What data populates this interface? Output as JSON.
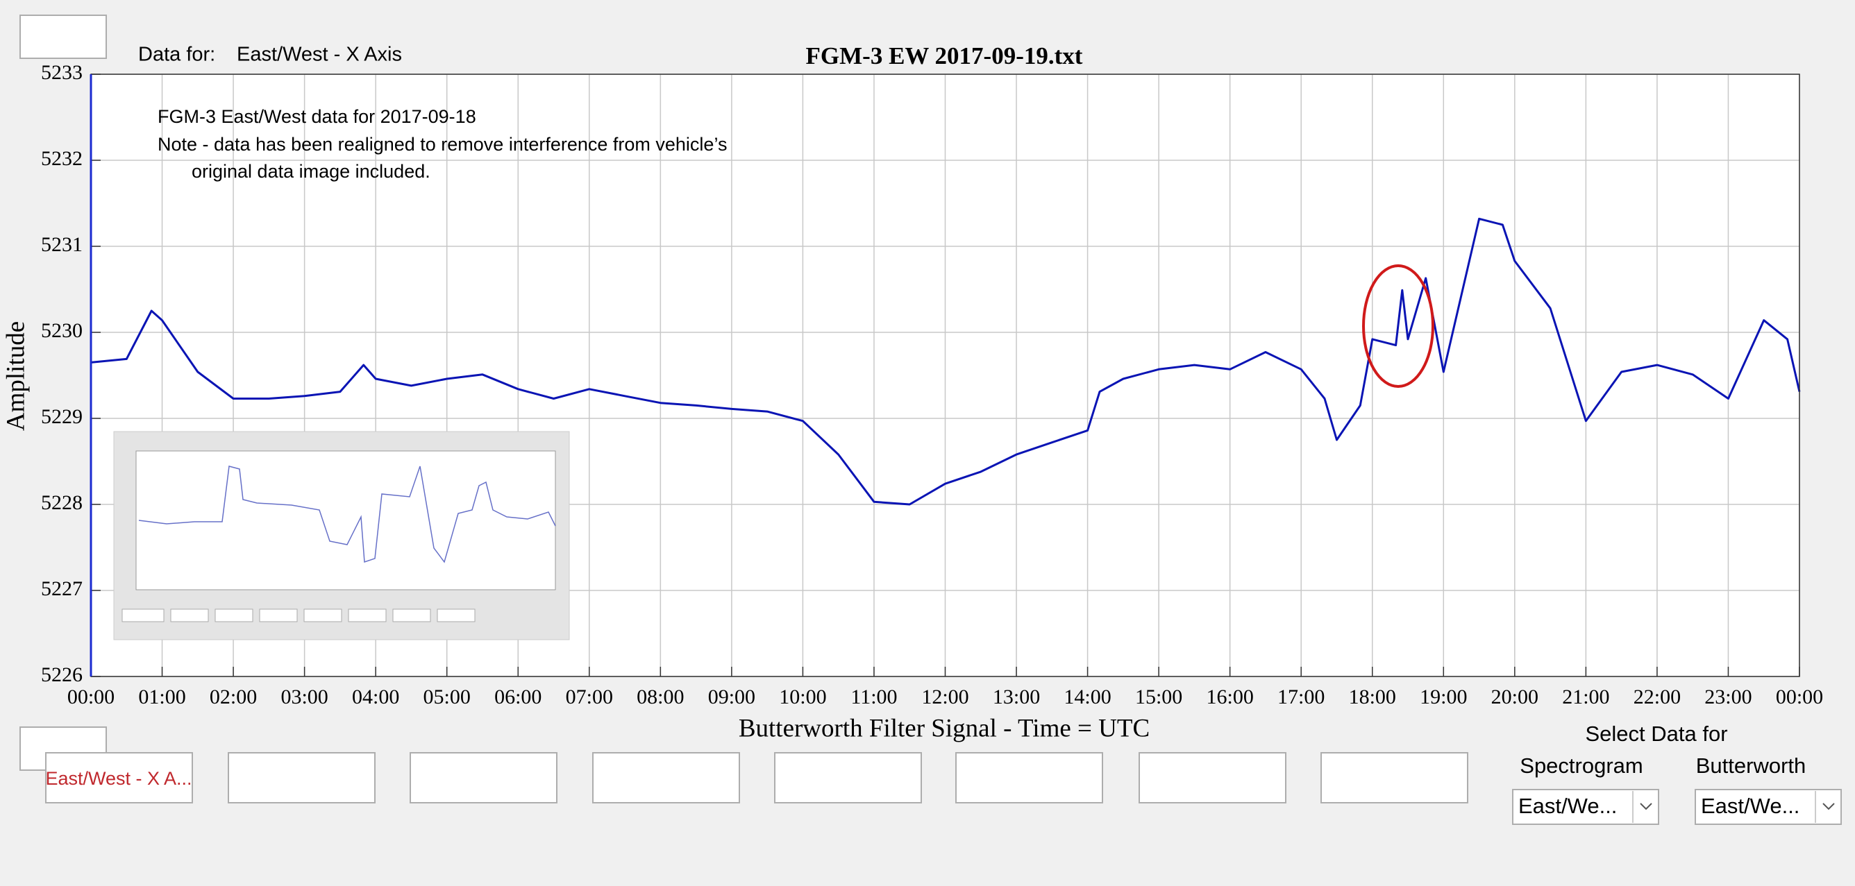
{
  "header": {
    "data_for_label": "Data for:",
    "data_for_value": "East/West - X Axis"
  },
  "chart_data": {
    "type": "line",
    "title": "FGM-3 EW 2017-09-19.txt",
    "y_label": "Amplitude",
    "x_label": "Butterworth Filter Signal - Time = UTC",
    "annotations": [
      "FGM-3 East/West data for 2017-09-18",
      "Note - data has been realigned to remove interference from vehicle’s",
      "original data image included."
    ],
    "color": "#0a14b4",
    "grid": true,
    "x": [
      0,
      0.5,
      0.85,
      1,
      1.5,
      2,
      2.5,
      3,
      3.5,
      3.83,
      4,
      4.5,
      5,
      5.5,
      6,
      6.5,
      7,
      7.5,
      8,
      8.5,
      9,
      9.5,
      10,
      10.5,
      11,
      11.5,
      12,
      12.5,
      13,
      13.5,
      14,
      14.17,
      14.5,
      15,
      15.5,
      16,
      16.5,
      17,
      17.33,
      17.5,
      17.83,
      18,
      18.33,
      18.42,
      18.5,
      18.75,
      19,
      19.5,
      19.83,
      20,
      20.5,
      21,
      21.5,
      22,
      22.5,
      23,
      23.5,
      23.83,
      24
    ],
    "values": [
      5229.65,
      5229.69,
      5230.25,
      5230.14,
      5229.54,
      5229.23,
      5229.23,
      5229.26,
      5229.31,
      5229.62,
      5229.46,
      5229.38,
      5229.46,
      5229.51,
      5229.34,
      5229.23,
      5229.34,
      5229.26,
      5229.18,
      5229.15,
      5229.11,
      5229.08,
      5228.97,
      5228.58,
      5228.03,
      5228.0,
      5228.24,
      5228.38,
      5228.58,
      5228.72,
      5228.86,
      5229.31,
      5229.46,
      5229.57,
      5229.62,
      5229.57,
      5229.77,
      5229.57,
      5229.23,
      5228.75,
      5229.15,
      5229.92,
      5229.85,
      5230.49,
      5229.92,
      5230.63,
      5229.54,
      5231.32,
      5231.25,
      5230.83,
      5230.28,
      5228.97,
      5229.54,
      5229.62,
      5229.51,
      5229.23,
      5230.14,
      5229.92,
      5229.31
    ],
    "xlim": [
      0,
      24
    ],
    "xticks": [
      {
        "value": 0,
        "label": "00:00"
      },
      {
        "value": 1,
        "label": "01:00"
      },
      {
        "value": 2,
        "label": "02:00"
      },
      {
        "value": 3,
        "label": "03:00"
      },
      {
        "value": 4,
        "label": "04:00"
      },
      {
        "value": 5,
        "label": "05:00"
      },
      {
        "value": 6,
        "label": "06:00"
      },
      {
        "value": 7,
        "label": "07:00"
      },
      {
        "value": 8,
        "label": "08:00"
      },
      {
        "value": 9,
        "label": "09:00"
      },
      {
        "value": 10,
        "label": "10:00"
      },
      {
        "value": 11,
        "label": "11:00"
      },
      {
        "value": 12,
        "label": "12:00"
      },
      {
        "value": 13,
        "label": "13:00"
      },
      {
        "value": 14,
        "label": "14:00"
      },
      {
        "value": 15,
        "label": "15:00"
      },
      {
        "value": 16,
        "label": "16:00"
      },
      {
        "value": 17,
        "label": "17:00"
      },
      {
        "value": 18,
        "label": "18:00"
      },
      {
        "value": 19,
        "label": "19:00"
      },
      {
        "value": 20,
        "label": "20:00"
      },
      {
        "value": 21,
        "label": "21:00"
      },
      {
        "value": 22,
        "label": "22:00"
      },
      {
        "value": 23,
        "label": "23:00"
      },
      {
        "value": 24,
        "label": "00:00"
      }
    ],
    "ylim": [
      5226,
      5233
    ],
    "yticks": [
      5226,
      5227,
      5228,
      5229,
      5230,
      5231,
      5232,
      5233
    ]
  },
  "controls": {
    "channel_button": "East/West - X A...",
    "select_title": "Select Data for",
    "spectrogram": {
      "label": "Spectrogram",
      "value": "East/We..."
    },
    "butterworth": {
      "label": "Butterworth",
      "value": "East/We..."
    }
  }
}
